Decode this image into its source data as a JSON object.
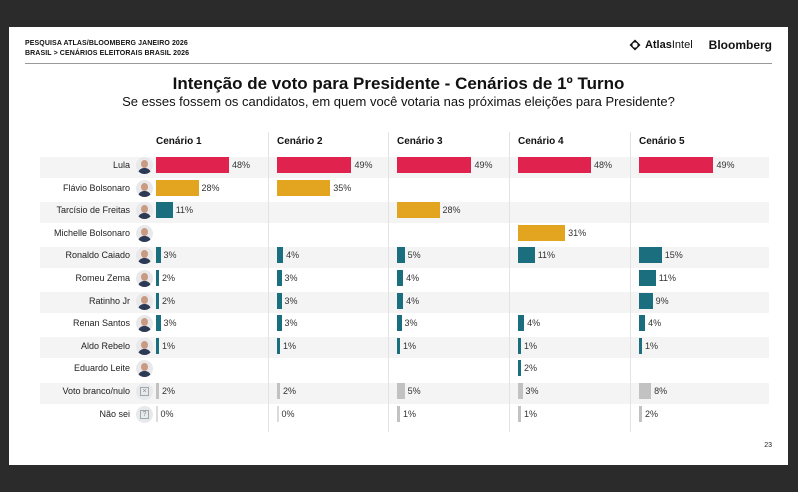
{
  "header": {
    "line1": "PESQUISA ATLAS/BLOOMBERG JANEIRO 2026",
    "line2": "BRASIL > CENÁRIOS ELEITORAIS BRASIL 2026",
    "logo_atlas_bold": "Atlas",
    "logo_atlas_light": "Intel",
    "logo_bloomberg": "Bloomberg"
  },
  "title": "Intenção de voto para Presidente - Cenários de 1º Turno",
  "subtitle": "Se esses fossem os candidatos, em quem você votaria nas próximas eleições para Presidente?",
  "page_number": "23",
  "colors": {
    "lula": "#e0234e",
    "bolsonaro_family": "#e3a520",
    "others": "#1a6e7e",
    "blank": "#c2c2c2"
  },
  "chart_data": {
    "type": "bar",
    "orientation": "horizontal",
    "title": "Intenção de voto para Presidente - Cenários de 1º Turno",
    "subtitle": "Se esses fossem os candidatos, em quem você votaria nas próximas eleições para Presidente?",
    "unit": "%",
    "scenarios": [
      "Cenário 1",
      "Cenário 2",
      "Cenário 3",
      "Cenário 4",
      "Cenário 5"
    ],
    "candidates": [
      {
        "name": "Lula",
        "color_key": "lula",
        "avatar": "photo",
        "values": [
          48,
          49,
          49,
          48,
          49
        ]
      },
      {
        "name": "Flávio Bolsonaro",
        "color_key": "bolsonaro_family",
        "avatar": "photo",
        "values": [
          28,
          35,
          null,
          null,
          null
        ]
      },
      {
        "name": "Tarcísio de Freitas",
        "color_key": "others",
        "avatar": "photo",
        "values": [
          11,
          null,
          28,
          null,
          null
        ],
        "colors_override": [
          null,
          null,
          "bolsonaro_family",
          null,
          null
        ]
      },
      {
        "name": "Michelle Bolsonaro",
        "color_key": "bolsonaro_family",
        "avatar": "photo",
        "values": [
          null,
          null,
          null,
          31,
          null
        ]
      },
      {
        "name": "Ronaldo Caiado",
        "color_key": "others",
        "avatar": "photo",
        "values": [
          3,
          4,
          5,
          11,
          15
        ]
      },
      {
        "name": "Romeu Zema",
        "color_key": "others",
        "avatar": "photo",
        "values": [
          2,
          3,
          4,
          null,
          11
        ]
      },
      {
        "name": "Ratinho Jr",
        "color_key": "others",
        "avatar": "photo",
        "values": [
          2,
          3,
          4,
          null,
          9
        ]
      },
      {
        "name": "Renan Santos",
        "color_key": "others",
        "avatar": "photo",
        "values": [
          3,
          3,
          3,
          4,
          4
        ]
      },
      {
        "name": "Aldo Rebelo",
        "color_key": "others",
        "avatar": "photo",
        "values": [
          1,
          1,
          1,
          1,
          1
        ]
      },
      {
        "name": "Eduardo Leite",
        "color_key": "others",
        "avatar": "photo",
        "values": [
          null,
          null,
          null,
          2,
          null
        ]
      },
      {
        "name": "Voto branco/nulo",
        "color_key": "blank",
        "avatar": "x-box",
        "values": [
          2,
          2,
          5,
          3,
          8
        ]
      },
      {
        "name": "Não sei",
        "color_key": "blank",
        "avatar": "question-box",
        "values": [
          0,
          0,
          1,
          1,
          2
        ]
      }
    ],
    "xlim": [
      0,
      100
    ]
  }
}
